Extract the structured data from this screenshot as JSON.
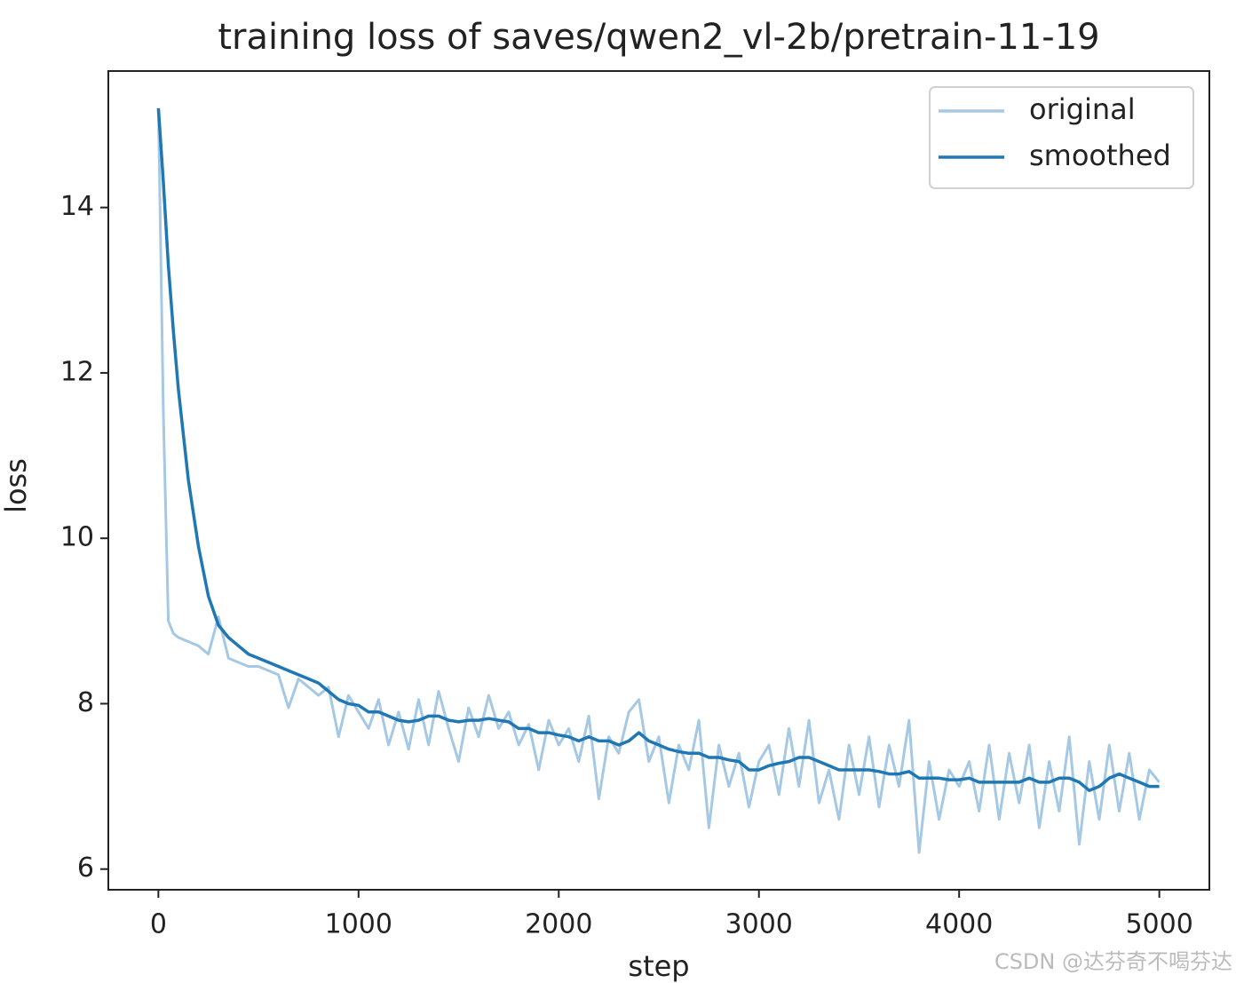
{
  "chart_data": {
    "type": "line",
    "title": "training loss of saves/qwen2_vl-2b/pretrain-11-19",
    "x_label": "step",
    "y_label": "loss",
    "watermark": "CSDN @达芬奇不喝芬达",
    "x": [
      0,
      25,
      50,
      75,
      100,
      150,
      200,
      250,
      300,
      350,
      400,
      450,
      500,
      550,
      600,
      650,
      700,
      750,
      800,
      850,
      900,
      950,
      1000,
      1050,
      1100,
      1150,
      1200,
      1250,
      1300,
      1350,
      1400,
      1450,
      1500,
      1550,
      1600,
      1650,
      1700,
      1750,
      1800,
      1850,
      1900,
      1950,
      2000,
      2050,
      2100,
      2150,
      2200,
      2250,
      2300,
      2350,
      2400,
      2450,
      2500,
      2550,
      2600,
      2650,
      2700,
      2750,
      2800,
      2850,
      2900,
      2950,
      3000,
      3050,
      3100,
      3150,
      3200,
      3250,
      3300,
      3350,
      3400,
      3450,
      3500,
      3550,
      3600,
      3650,
      3700,
      3750,
      3800,
      3850,
      3900,
      3950,
      4000,
      4050,
      4100,
      4150,
      4200,
      4250,
      4300,
      4350,
      4400,
      4450,
      4500,
      4550,
      4600,
      4650,
      4700,
      4750,
      4800,
      4850,
      4900,
      4950,
      5000
    ],
    "series": [
      {
        "name": "original",
        "color": "#a5c8e4",
        "values": [
          15.2,
          11.5,
          9.0,
          8.85,
          8.8,
          8.75,
          8.7,
          8.6,
          9.05,
          8.55,
          8.5,
          8.45,
          8.45,
          8.4,
          8.35,
          7.95,
          8.3,
          8.2,
          8.1,
          8.2,
          7.6,
          8.1,
          7.9,
          7.7,
          8.05,
          7.5,
          7.9,
          7.45,
          8.05,
          7.5,
          8.15,
          7.7,
          7.3,
          7.95,
          7.6,
          8.1,
          7.7,
          7.9,
          7.5,
          7.75,
          7.2,
          7.8,
          7.5,
          7.7,
          7.3,
          7.85,
          6.85,
          7.6,
          7.4,
          7.9,
          8.05,
          7.3,
          7.6,
          6.8,
          7.5,
          7.2,
          7.8,
          6.5,
          7.5,
          7.0,
          7.4,
          6.75,
          7.3,
          7.5,
          6.9,
          7.7,
          7.0,
          7.8,
          6.8,
          7.2,
          6.6,
          7.5,
          6.9,
          7.6,
          6.75,
          7.5,
          7.0,
          7.8,
          6.2,
          7.3,
          6.6,
          7.2,
          7.0,
          7.3,
          6.7,
          7.5,
          6.6,
          7.4,
          6.8,
          7.5,
          6.5,
          7.3,
          6.7,
          7.6,
          6.3,
          7.3,
          6.6,
          7.5,
          6.7,
          7.4,
          6.6,
          7.2,
          7.05
        ]
      },
      {
        "name": "smoothed",
        "color": "#1f77b4",
        "values": [
          15.2,
          14.3,
          13.3,
          12.5,
          11.8,
          10.7,
          9.9,
          9.3,
          8.95,
          8.8,
          8.7,
          8.6,
          8.55,
          8.5,
          8.45,
          8.4,
          8.35,
          8.3,
          8.25,
          8.15,
          8.05,
          8.0,
          7.98,
          7.9,
          7.9,
          7.85,
          7.8,
          7.78,
          7.8,
          7.85,
          7.85,
          7.8,
          7.78,
          7.8,
          7.8,
          7.82,
          7.8,
          7.78,
          7.7,
          7.7,
          7.65,
          7.65,
          7.62,
          7.6,
          7.55,
          7.6,
          7.55,
          7.55,
          7.5,
          7.55,
          7.65,
          7.55,
          7.5,
          7.45,
          7.42,
          7.4,
          7.4,
          7.35,
          7.35,
          7.32,
          7.3,
          7.2,
          7.2,
          7.25,
          7.28,
          7.3,
          7.35,
          7.35,
          7.3,
          7.25,
          7.2,
          7.2,
          7.2,
          7.2,
          7.18,
          7.15,
          7.15,
          7.18,
          7.1,
          7.1,
          7.1,
          7.08,
          7.08,
          7.1,
          7.05,
          7.05,
          7.05,
          7.05,
          7.05,
          7.1,
          7.05,
          7.05,
          7.1,
          7.1,
          7.05,
          6.95,
          7.0,
          7.1,
          7.15,
          7.1,
          7.05,
          7.0,
          7.0
        ]
      }
    ],
    "xlim": [
      -250,
      5250
    ],
    "xticks": [
      0,
      1000,
      2000,
      3000,
      4000,
      5000
    ],
    "ylim": [
      5.75,
      15.65
    ],
    "yticks": [
      6,
      8,
      10,
      12,
      14
    ],
    "grid": false,
    "legend": "upper right"
  }
}
